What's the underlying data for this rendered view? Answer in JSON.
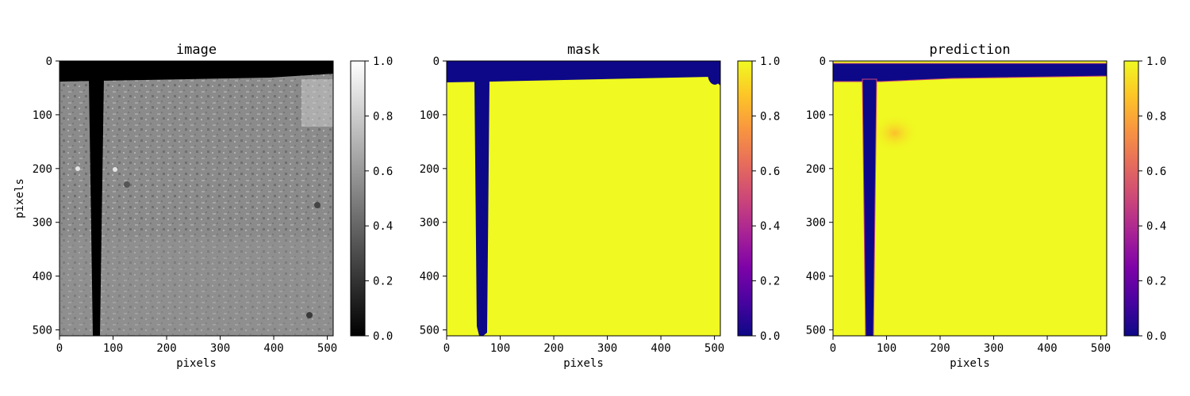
{
  "chart_data": [
    {
      "type": "heatmap",
      "title": "image",
      "xlabel": "pixels",
      "ylabel": "pixels",
      "xlim": [
        0,
        511
      ],
      "ylim": [
        511,
        0
      ],
      "x_ticks": [
        0,
        100,
        200,
        300,
        400,
        500
      ],
      "y_ticks": [
        0,
        100,
        200,
        300,
        400,
        500
      ],
      "colormap": "gray",
      "colorbar": {
        "range": [
          0.0,
          1.0
        ],
        "ticks": [
          "0.0",
          "0.2",
          "0.4",
          "0.6",
          "0.8",
          "1.0"
        ]
      },
      "colors": {
        "background_value": "#8a8a8a",
        "dark_bar": "#000000"
      }
    },
    {
      "type": "heatmap",
      "title": "mask",
      "xlabel": "pixels",
      "ylabel": "",
      "xlim": [
        0,
        511
      ],
      "ylim": [
        511,
        0
      ],
      "x_ticks": [
        0,
        100,
        200,
        300,
        400,
        500
      ],
      "y_ticks": [
        0,
        100,
        200,
        300,
        400,
        500
      ],
      "colormap": "plasma",
      "colorbar": {
        "range": [
          0.0,
          1.0
        ],
        "ticks": [
          "0.0",
          "0.2",
          "0.4",
          "0.6",
          "0.8",
          "1.0"
        ]
      },
      "colors": {
        "high": "#f0f921",
        "low": "#0d0887"
      }
    },
    {
      "type": "heatmap",
      "title": "prediction",
      "xlabel": "pixels",
      "ylabel": "",
      "xlim": [
        0,
        511
      ],
      "ylim": [
        511,
        0
      ],
      "x_ticks": [
        0,
        100,
        200,
        300,
        400,
        500
      ],
      "y_ticks": [
        0,
        100,
        200,
        300,
        400,
        500
      ],
      "colormap": "plasma",
      "colorbar": {
        "range": [
          0.0,
          1.0
        ],
        "ticks": [
          "0.0",
          "0.2",
          "0.4",
          "0.6",
          "0.8",
          "1.0"
        ]
      },
      "colors": {
        "high": "#f0f921",
        "low": "#0d0887",
        "blob": "#fdc02e"
      }
    }
  ]
}
